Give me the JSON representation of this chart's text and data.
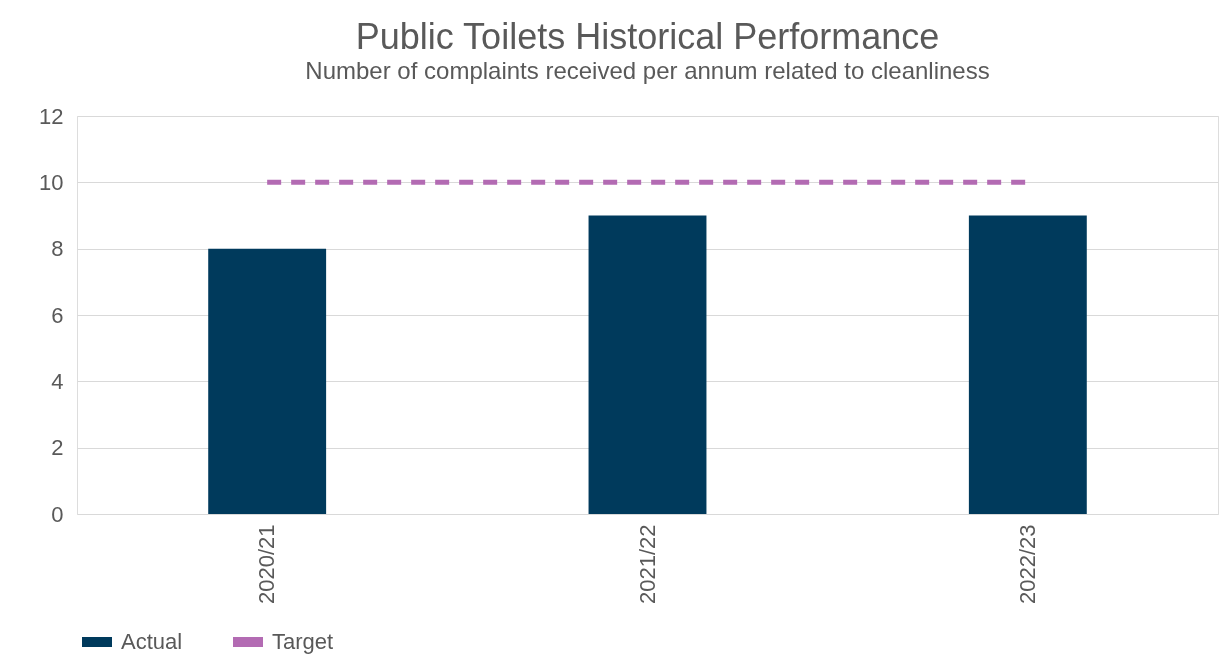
{
  "chart_data": {
    "type": "bar",
    "title": "Public Toilets Historical Performance",
    "subtitle": "Number of complaints received per annum related to cleanliness",
    "categories": [
      "2020/21",
      "2021/22",
      "2022/23"
    ],
    "series": [
      {
        "name": "Actual",
        "color": "#003a5c",
        "values": [
          8,
          9,
          9
        ]
      },
      {
        "name": "Target",
        "color": "#b36bb3",
        "values": [
          10,
          10,
          10
        ],
        "type": "line",
        "line_style": "dashed"
      }
    ],
    "ylim": [
      0,
      12
    ],
    "yticks": [
      0,
      2,
      4,
      6,
      8,
      10,
      12
    ],
    "grid": "y",
    "legend": "bottom"
  }
}
